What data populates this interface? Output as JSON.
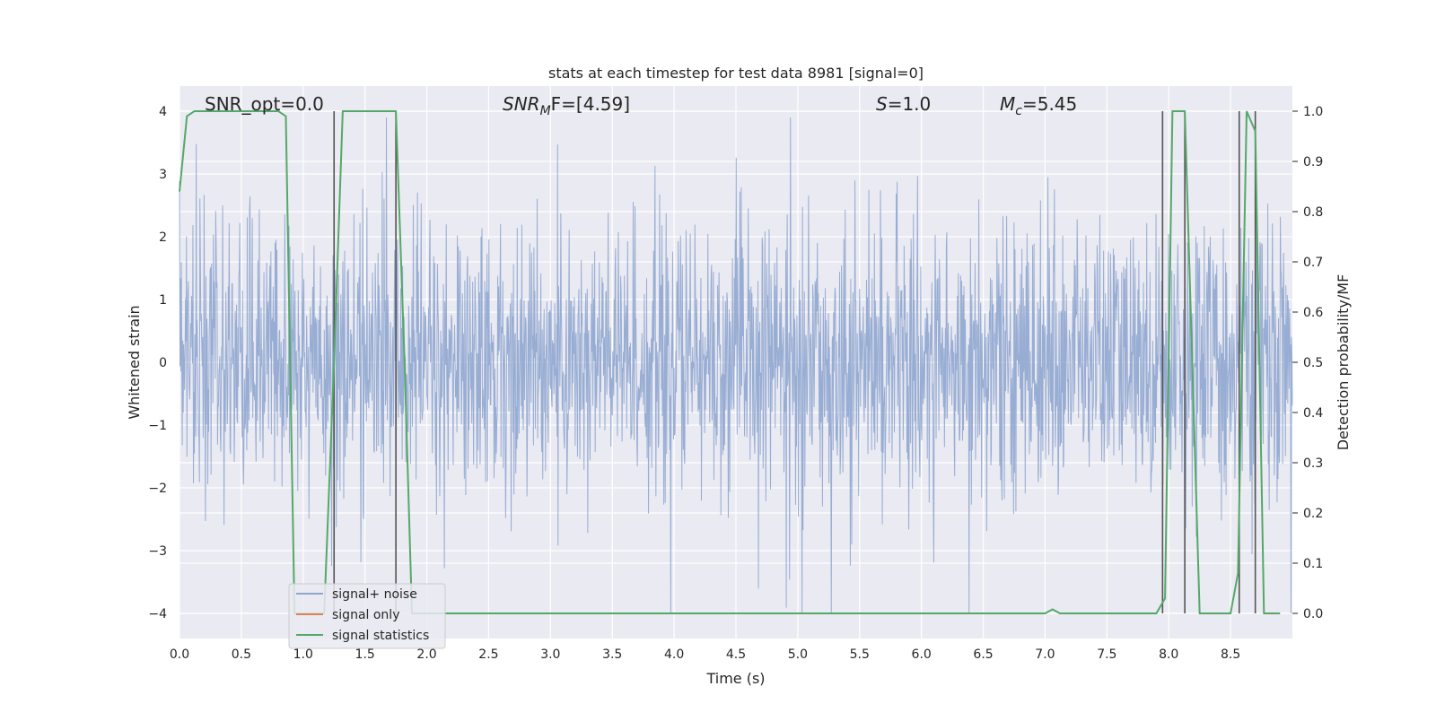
{
  "chart_data": {
    "type": "line",
    "title": "stats at each timestep for test data 8981 [signal=0]",
    "xlabel": "Time (s)",
    "ylabel_left": "Whitened strain",
    "ylabel_right": "Detection probability/MF",
    "xlim": [
      0.0,
      9.0
    ],
    "ylim_left": [
      -4.4,
      4.4
    ],
    "ylim_right": [
      -0.05,
      1.05
    ],
    "x_ticks": [
      "0.0",
      "0.5",
      "1.0",
      "1.5",
      "2.0",
      "2.5",
      "3.0",
      "3.5",
      "4.0",
      "4.5",
      "5.0",
      "5.5",
      "6.0",
      "6.5",
      "7.0",
      "7.5",
      "8.0",
      "8.5"
    ],
    "y_left_ticks": [
      "−4",
      "−3",
      "−2",
      "−1",
      "0",
      "1",
      "2",
      "3",
      "4"
    ],
    "y_right_ticks": [
      "0.0",
      "0.1",
      "0.2",
      "0.3",
      "0.4",
      "0.5",
      "0.6",
      "0.7",
      "0.8",
      "0.9",
      "1.0"
    ],
    "grid": true,
    "legend_position": "lower-left",
    "annotations": {
      "snr_opt": "SNR_opt=0.0",
      "snr_mf_main": "SNR",
      "snr_mf_sub": "M",
      "snr_mf_rest": "F=[4.59]",
      "s_main": "S",
      "s_rest": "=1.0",
      "mc_main": "M",
      "mc_sub": "c",
      "mc_rest": "=5.45"
    },
    "series": [
      {
        "name": "signal+ noise",
        "color": "#8fa6cf",
        "axis": "left",
        "description_values": {
          "typical_range": [
            -2.0,
            2.3
          ],
          "max": 3.9,
          "min": -4.0
        }
      },
      {
        "name": "signal only",
        "color": "#dd8452",
        "axis": "left",
        "x": [
          0.0,
          9.0
        ],
        "y": [
          0.0,
          0.0
        ]
      },
      {
        "name": "signal statistics",
        "color": "#55a868",
        "axis": "right",
        "x": [
          0.0,
          0.06,
          0.12,
          0.8,
          0.86,
          0.93,
          1.17,
          1.25,
          1.32,
          1.75,
          1.82,
          1.88,
          7.0,
          7.06,
          7.12,
          7.9,
          7.97,
          8.03,
          8.13,
          8.25,
          8.5,
          8.56,
          8.63,
          8.7,
          8.77,
          8.83,
          8.9
        ],
        "y": [
          0.84,
          0.99,
          1.0,
          1.0,
          0.99,
          0.0,
          0.0,
          0.5,
          1.0,
          1.0,
          0.5,
          0.0,
          0.0,
          0.008,
          0.0,
          0.0,
          0.03,
          1.0,
          1.0,
          0.0,
          0.0,
          0.08,
          1.0,
          0.96,
          0.0,
          0.0,
          0.0
        ]
      }
    ],
    "vertical_lines_x": [
      1.25,
      1.75,
      7.95,
      8.13,
      8.57,
      8.7
    ]
  }
}
